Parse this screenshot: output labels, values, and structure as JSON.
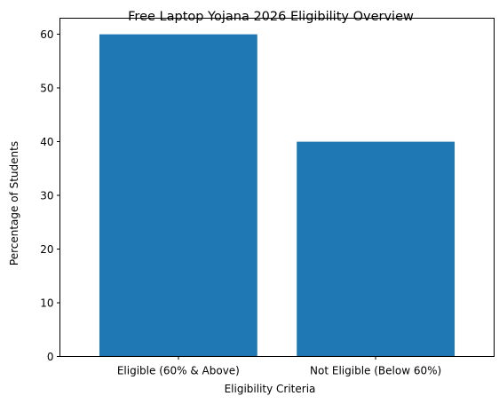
{
  "chart_data": {
    "type": "bar",
    "title": "Free Laptop Yojana 2026 Eligibility Overview",
    "xlabel": "Eligibility Criteria",
    "ylabel": "Percentage of Students",
    "categories": [
      "Eligible (60% & Above)",
      "Not Eligible (Below 60%)"
    ],
    "values": [
      60,
      40
    ],
    "ylim": [
      0,
      63
    ],
    "yticks": [
      0,
      10,
      20,
      30,
      40,
      50,
      60
    ],
    "bar_color": "#1f77b4",
    "grid": false
  }
}
